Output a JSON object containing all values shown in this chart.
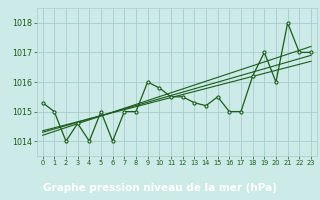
{
  "title": "Graphe pression niveau de la mer (hPa)",
  "bg_color": "#cceae7",
  "plot_bg_color": "#cceae7",
  "grid_color": "#aacccc",
  "line_color": "#1a5c1a",
  "xlabel_bg": "#1a5c1a",
  "xlabel_fg": "#ffffff",
  "xlim": [
    -0.5,
    23.5
  ],
  "ylim": [
    1013.5,
    1018.5
  ],
  "yticks": [
    1014,
    1015,
    1016,
    1017,
    1018
  ],
  "xticks": [
    0,
    1,
    2,
    3,
    4,
    5,
    6,
    7,
    8,
    9,
    10,
    11,
    12,
    13,
    14,
    15,
    16,
    17,
    18,
    19,
    20,
    21,
    22,
    23
  ],
  "pressure_data": [
    1015.3,
    1015.0,
    1014.0,
    1014.6,
    1014.0,
    1015.0,
    1014.0,
    1015.0,
    1015.0,
    1016.0,
    1015.8,
    1015.5,
    1015.5,
    1015.3,
    1015.2,
    1015.5,
    1015.0,
    1015.0,
    1016.2,
    1017.0,
    1016.0,
    1018.0,
    1017.0,
    1017.0
  ],
  "regression_lines": [
    {
      "x": [
        0,
        23
      ],
      "y": [
        1014.2,
        1017.2
      ]
    },
    {
      "x": [
        0,
        23
      ],
      "y": [
        1014.3,
        1016.9
      ]
    },
    {
      "x": [
        0,
        23
      ],
      "y": [
        1014.35,
        1016.7
      ]
    }
  ]
}
